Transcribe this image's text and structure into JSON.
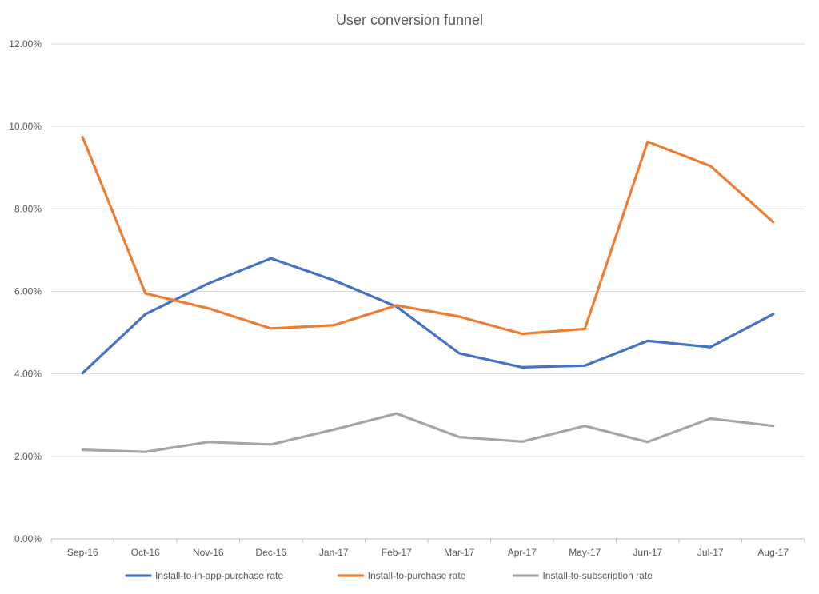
{
  "chart_data": {
    "type": "line",
    "title": "User conversion funnel",
    "categories": [
      "Sep-16",
      "Oct-16",
      "Nov-16",
      "Dec-16",
      "Jan-17",
      "Feb-17",
      "Mar-17",
      "Apr-17",
      "May-17",
      "Jun-17",
      "Jul-17",
      "Aug-17"
    ],
    "y_ticks": [
      "0.00%",
      "2.00%",
      "4.00%",
      "6.00%",
      "8.00%",
      "10.00%",
      "12.00%"
    ],
    "ylim": [
      0,
      12
    ],
    "grid": true,
    "legend_position": "bottom",
    "series": [
      {
        "name": "Install-to-in-app-purchase rate",
        "color": "#4472C4",
        "values": [
          4.02,
          5.45,
          6.19,
          6.8,
          6.27,
          5.63,
          4.5,
          4.16,
          4.2,
          4.8,
          4.65,
          5.45
        ]
      },
      {
        "name": "Install-to-purchase rate",
        "color": "#ED7D31",
        "values": [
          9.74,
          5.95,
          5.59,
          5.1,
          5.18,
          5.66,
          5.39,
          4.97,
          5.09,
          9.63,
          9.04,
          7.68
        ]
      },
      {
        "name": "Install-to-subscription rate",
        "color": "#A5A5A5",
        "values": [
          2.16,
          2.11,
          2.35,
          2.29,
          2.65,
          3.04,
          2.47,
          2.36,
          2.74,
          2.35,
          2.92,
          2.74
        ]
      }
    ]
  }
}
